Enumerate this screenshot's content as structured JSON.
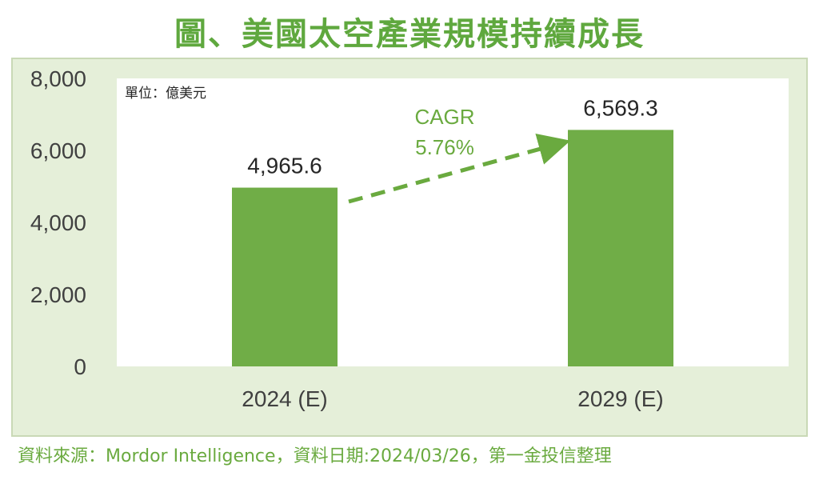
{
  "title": "圖、美國太空產業規模持續成長",
  "source": "資料來源：Mordor Intelligence，資料日期:2024/03/26，第一金投信整理",
  "chart_data": {
    "type": "bar",
    "categories": [
      "2024 (E)",
      "2029 (E)"
    ],
    "values": [
      4965.6,
      6569.3
    ],
    "value_labels": [
      "4,965.6",
      "6,569.3"
    ],
    "ylim": [
      0,
      8000
    ],
    "yticks": [
      0,
      2000,
      4000,
      6000,
      8000
    ],
    "ytick_labels": [
      "0",
      "2,000",
      "4,000",
      "6,000",
      "8,000"
    ],
    "unit_label": "單位：億美元",
    "annotation": {
      "line1": "CAGR",
      "line2": "5.76%"
    },
    "colors": {
      "bar": "#70ad47",
      "accent": "#6aaa3f"
    }
  }
}
